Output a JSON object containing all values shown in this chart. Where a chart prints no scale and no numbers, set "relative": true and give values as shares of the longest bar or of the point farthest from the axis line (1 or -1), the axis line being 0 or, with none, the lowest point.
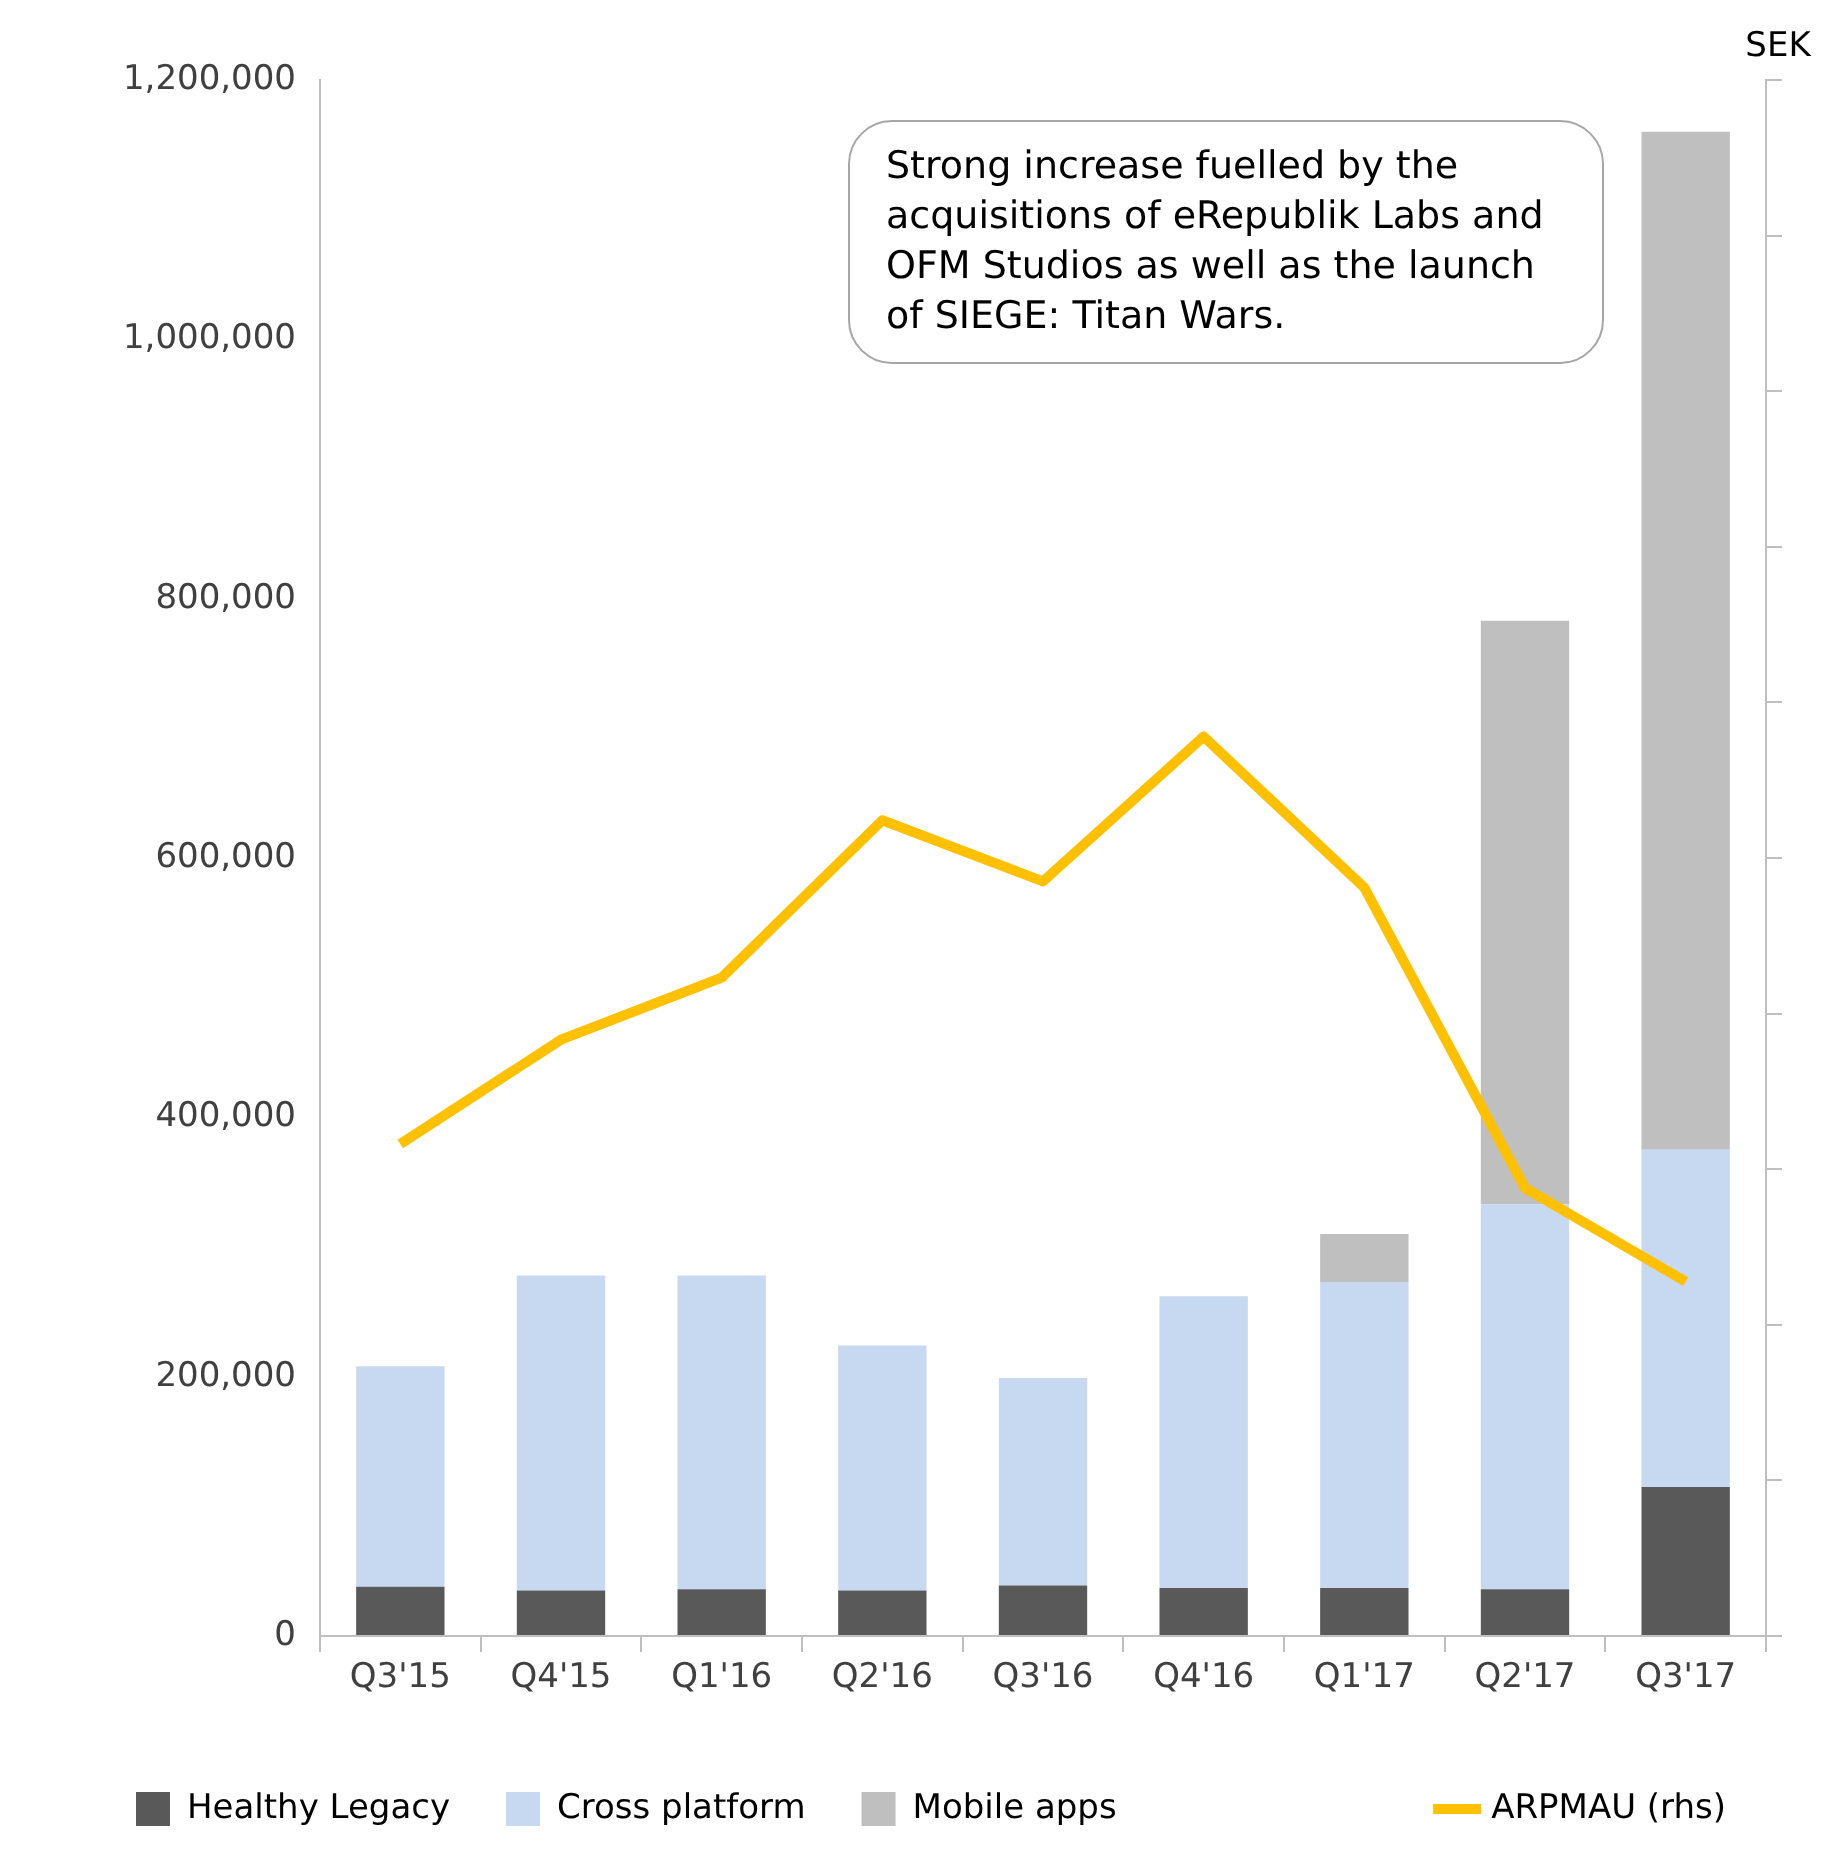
{
  "chart_data": [
    {
      "type": "bar",
      "stacked": true,
      "categories": [
        "Q3'15",
        "Q4'15",
        "Q1'16",
        "Q2'16",
        "Q3'16",
        "Q4'16",
        "Q1'17",
        "Q2'17",
        "Q3'17"
      ],
      "series": [
        {
          "name": "Healthy Legacy",
          "color": "#595959",
          "values": [
            38000,
            35000,
            36000,
            35000,
            39000,
            37000,
            37000,
            36000,
            115000
          ]
        },
        {
          "name": "Cross platform",
          "color": "#c6d9f1",
          "values": [
            170000,
            243000,
            242000,
            189000,
            160000,
            225000,
            236000,
            297000,
            260000
          ]
        },
        {
          "name": "Mobile apps",
          "color": "#bfbfbf",
          "values": [
            null,
            null,
            null,
            null,
            null,
            null,
            37000,
            450000,
            785000
          ]
        }
      ],
      "ylim": [
        0,
        1200000
      ],
      "yticks": [
        {
          "value": 0,
          "label": "0"
        },
        {
          "value": 200000,
          "label": "200,000"
        },
        {
          "value": 400000,
          "label": "400,000"
        },
        {
          "value": 600000,
          "label": "600,000"
        },
        {
          "value": 800000,
          "label": "800,000"
        },
        {
          "value": 1000000,
          "label": "1,000,000"
        },
        {
          "value": 1200000,
          "label": "1,200,000"
        }
      ],
      "annotations": [
        "Strong increase fuelled by the acquisitions of eRepublik Labs and OFM Studios as well as the launch of SIEGE: Titan Wars.",
        "SEK"
      ],
      "grid": false,
      "legend": "bottom left"
    },
    {
      "type": "line",
      "relative": true,
      "categories": [
        null,
        null,
        null,
        null,
        null,
        null,
        null,
        null,
        null
      ],
      "series": [
        {
          "name": "ARPMAU (rhs)",
          "color": "#ffc000",
          "values": [
            0.547,
            0.663,
            0.732,
            0.907,
            0.839,
            1,
            0.832,
            0.498,
            0.394
          ]
        }
      ],
      "tick_labels": false,
      "grid": false,
      "legend": "bottom right",
      "marker": "none",
      "line_style": "solid"
    }
  ]
}
